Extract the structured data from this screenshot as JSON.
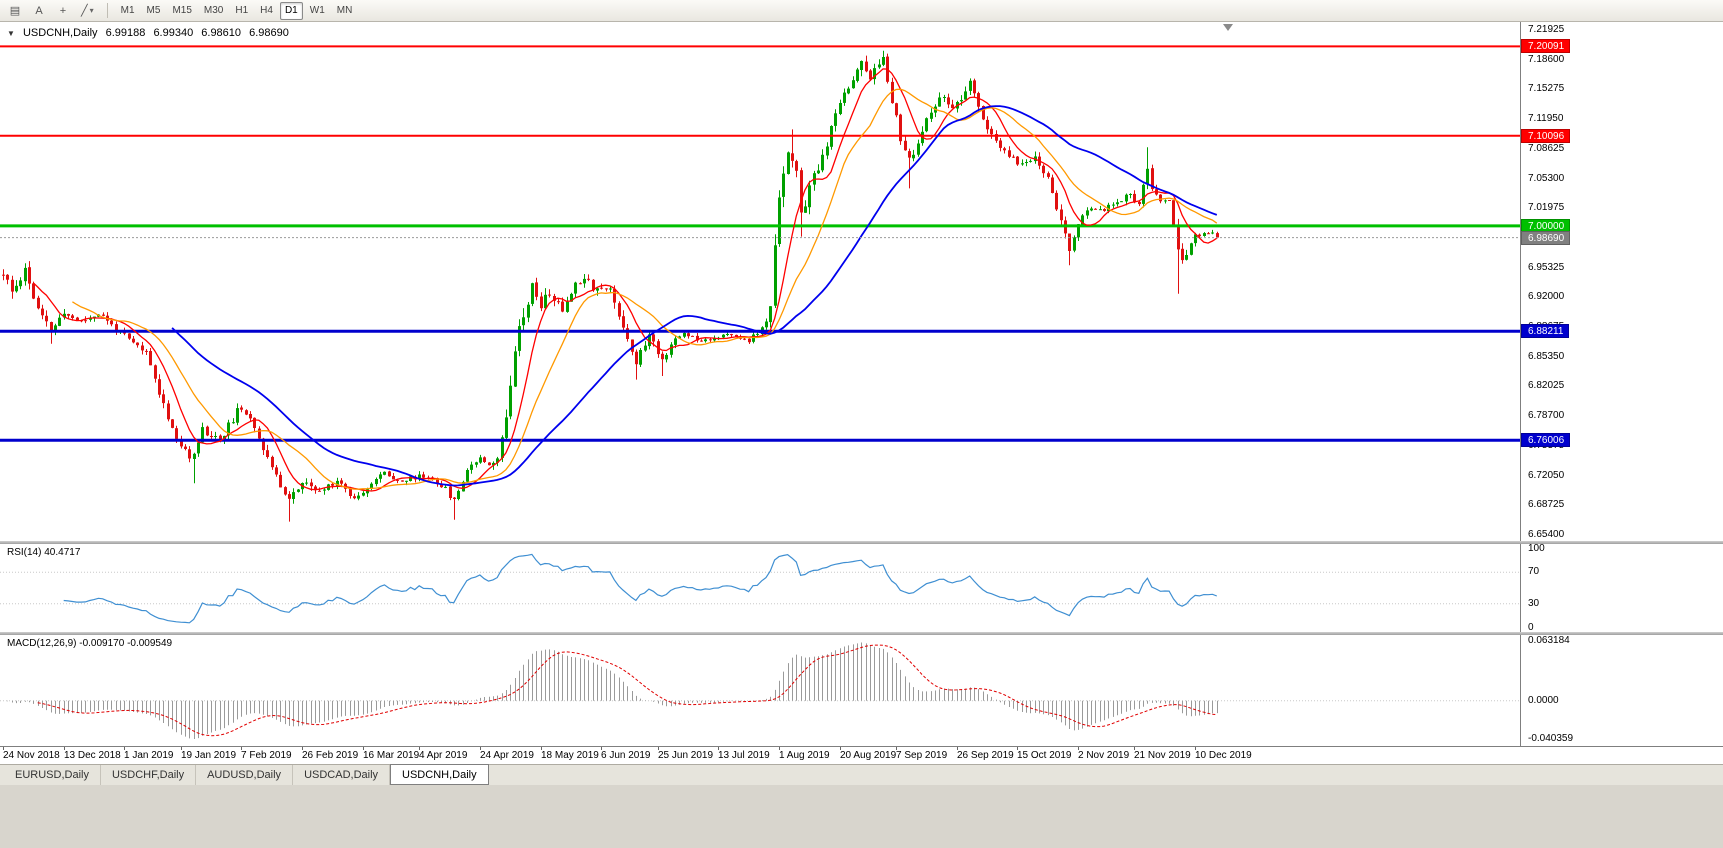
{
  "toolbar": {
    "icons": [
      {
        "name": "charts-window-icon",
        "glyph": "▤"
      },
      {
        "name": "text-annotation-icon",
        "glyph": "A"
      },
      {
        "name": "crosshair-tool-icon",
        "glyph": "+"
      },
      {
        "name": "line-studies-icon",
        "glyph": "╱",
        "caret": "▾"
      }
    ],
    "timeframes": [
      "M1",
      "M5",
      "M15",
      "M30",
      "H1",
      "H4",
      "D1",
      "W1",
      "MN"
    ],
    "active_timeframe": "D1"
  },
  "chart_header": {
    "caret_glyph": "▼",
    "symbol": "USDCNH,Daily",
    "open": "6.99188",
    "high": "6.99340",
    "low": "6.98610",
    "close": "6.98690"
  },
  "price_axis": {
    "ticks": [
      "7.21925",
      "7.18600",
      "7.15275",
      "7.11950",
      "7.08625",
      "7.05300",
      "7.01975",
      "6.98650",
      "6.95325",
      "6.92000",
      "6.88675",
      "6.85350",
      "6.82025",
      "6.78700",
      "6.75375",
      "6.72050",
      "6.68725",
      "6.65400"
    ]
  },
  "levels": [
    {
      "label": "7.20091",
      "price": 7.20091,
      "color": "#ff0000",
      "thickness": 2
    },
    {
      "label": "7.10096",
      "price": 7.10096,
      "color": "#ff0000",
      "thickness": 2
    },
    {
      "label": "7.00000",
      "price": 7.0,
      "color": "#00c000",
      "thickness": 3
    },
    {
      "label": "6.88211",
      "price": 6.88211,
      "color": "#0000cd",
      "thickness": 3
    },
    {
      "label": "6.76006",
      "price": 6.76006,
      "color": "#0000cd",
      "thickness": 3
    }
  ],
  "current_price": {
    "label": "6.98690",
    "value": 6.9869,
    "box_color": "#808080",
    "line_color": "#9a9a9a"
  },
  "moving_averages": [
    {
      "period": 8,
      "color": "#ff0000",
      "width": 1.3
    },
    {
      "period": 17,
      "color": "#ff9900",
      "width": 1.3
    },
    {
      "period": 40,
      "color": "#0000ee",
      "width": 1.8
    }
  ],
  "rsi": {
    "label": "RSI(14) 40.4717",
    "period": 14,
    "value": 40.4717,
    "line_color": "#3f8fd2",
    "guide_levels": [
      70,
      30
    ],
    "axis_labels": [
      {
        "label": "100",
        "value": 100
      },
      {
        "label": "70",
        "value": 70
      },
      {
        "label": "30",
        "value": 30
      },
      {
        "label": "0",
        "value": 0
      }
    ]
  },
  "macd": {
    "label": "MACD(12,26,9) -0.009170 -0.009549",
    "fast": 12,
    "slow": 26,
    "signal_period": 9,
    "main_value": -0.00917,
    "signal_value": -0.009549,
    "max": 0.063184,
    "min": -0.040359,
    "histogram_color": "#9a9a9a",
    "signal_color": "#e00000",
    "axis_labels": [
      {
        "label": "0.063184",
        "value": 0.063184
      },
      {
        "label": "0.0000",
        "value": 0
      },
      {
        "label": "-0.040359",
        "value": -0.040359
      }
    ]
  },
  "tabs": {
    "items": [
      "EURUSD,Daily",
      "USDCHF,Daily",
      "AUDUSD,Daily",
      "USDCAD,Daily",
      "USDCNH,Daily"
    ],
    "active": "USDCNH,Daily"
  },
  "chart_data": {
    "type": "candlestick",
    "symbol": "USDCNH",
    "timeframe": "Daily",
    "bars": 281,
    "seed": 11,
    "y_range": [
      6.6473,
      7.2282
    ],
    "colors": {
      "up": "#00a000",
      "down": "#e01010"
    },
    "close_anchors": [
      [
        0,
        6.945
      ],
      [
        2,
        6.925
      ],
      [
        5,
        6.952
      ],
      [
        8,
        6.905
      ],
      [
        11,
        6.882
      ],
      [
        14,
        6.902
      ],
      [
        18,
        6.893
      ],
      [
        22,
        6.902
      ],
      [
        26,
        6.885
      ],
      [
        29,
        6.872
      ],
      [
        33,
        6.858
      ],
      [
        37,
        6.8
      ],
      [
        40,
        6.762
      ],
      [
        43,
        6.738
      ],
      [
        46,
        6.772
      ],
      [
        50,
        6.76
      ],
      [
        54,
        6.792
      ],
      [
        57,
        6.788
      ],
      [
        60,
        6.752
      ],
      [
        63,
        6.718
      ],
      [
        66,
        6.695
      ],
      [
        69,
        6.712
      ],
      [
        73,
        6.702
      ],
      [
        77,
        6.716
      ],
      [
        81,
        6.695
      ],
      [
        84,
        6.708
      ],
      [
        88,
        6.724
      ],
      [
        92,
        6.714
      ],
      [
        96,
        6.72
      ],
      [
        99,
        6.718
      ],
      [
        102,
        6.705
      ],
      [
        104,
        6.692
      ],
      [
        107,
        6.728
      ],
      [
        110,
        6.742
      ],
      [
        112,
        6.734
      ],
      [
        114,
        6.738
      ],
      [
        116,
        6.79
      ],
      [
        118,
        6.868
      ],
      [
        120,
        6.902
      ],
      [
        122,
        6.932
      ],
      [
        124,
        6.912
      ],
      [
        126,
        6.925
      ],
      [
        129,
        6.905
      ],
      [
        131,
        6.928
      ],
      [
        134,
        6.945
      ],
      [
        136,
        6.932
      ],
      [
        140,
        6.928
      ],
      [
        143,
        6.888
      ],
      [
        146,
        6.848
      ],
      [
        149,
        6.878
      ],
      [
        152,
        6.85
      ],
      [
        154,
        6.868
      ],
      [
        157,
        6.88
      ],
      [
        161,
        6.872
      ],
      [
        167,
        6.878
      ],
      [
        172,
        6.872
      ],
      [
        175,
        6.884
      ],
      [
        177,
        6.905
      ],
      [
        178,
        6.975
      ],
      [
        179,
        7.038
      ],
      [
        180,
        7.062
      ],
      [
        181,
        7.085
      ],
      [
        183,
        7.058
      ],
      [
        184,
        7.008
      ],
      [
        186,
        7.045
      ],
      [
        188,
        7.062
      ],
      [
        190,
        7.092
      ],
      [
        192,
        7.122
      ],
      [
        194,
        7.152
      ],
      [
        196,
        7.162
      ],
      [
        198,
        7.185
      ],
      [
        200,
        7.168
      ],
      [
        202,
        7.178
      ],
      [
        203,
        7.19
      ],
      [
        205,
        7.142
      ],
      [
        207,
        7.098
      ],
      [
        209,
        7.072
      ],
      [
        211,
        7.092
      ],
      [
        213,
        7.118
      ],
      [
        215,
        7.132
      ],
      [
        217,
        7.148
      ],
      [
        219,
        7.128
      ],
      [
        221,
        7.142
      ],
      [
        223,
        7.158
      ],
      [
        225,
        7.135
      ],
      [
        227,
        7.108
      ],
      [
        229,
        7.092
      ],
      [
        232,
        7.078
      ],
      [
        235,
        7.068
      ],
      [
        238,
        7.078
      ],
      [
        241,
        7.052
      ],
      [
        243,
        7.022
      ],
      [
        245,
        6.988
      ],
      [
        246,
        6.972
      ],
      [
        248,
        7.002
      ],
      [
        251,
        7.022
      ],
      [
        254,
        7.018
      ],
      [
        257,
        7.028
      ],
      [
        260,
        7.035
      ],
      [
        262,
        7.022
      ],
      [
        264,
        7.065
      ],
      [
        265,
        7.038
      ],
      [
        267,
        7.028
      ],
      [
        269,
        7.032
      ],
      [
        271,
        6.972
      ],
      [
        272,
        6.962
      ],
      [
        274,
        6.978
      ],
      [
        275,
        6.988
      ],
      [
        277,
        6.992
      ],
      [
        279,
        6.993
      ],
      [
        280,
        6.9869
      ]
    ],
    "vol_anchors": [
      [
        0,
        0.02
      ],
      [
        8,
        0.016
      ],
      [
        14,
        0.011
      ],
      [
        25,
        0.009
      ],
      [
        33,
        0.01
      ],
      [
        40,
        0.013
      ],
      [
        50,
        0.012
      ],
      [
        60,
        0.012
      ],
      [
        70,
        0.011
      ],
      [
        80,
        0.009
      ],
      [
        95,
        0.009
      ],
      [
        110,
        0.009
      ],
      [
        115,
        0.012
      ],
      [
        117,
        0.026
      ],
      [
        122,
        0.018
      ],
      [
        130,
        0.012
      ],
      [
        142,
        0.014
      ],
      [
        150,
        0.012
      ],
      [
        158,
        0.007
      ],
      [
        170,
        0.006
      ],
      [
        176,
        0.01
      ],
      [
        178,
        0.026
      ],
      [
        182,
        0.022
      ],
      [
        190,
        0.014
      ],
      [
        200,
        0.015
      ],
      [
        206,
        0.014
      ],
      [
        214,
        0.012
      ],
      [
        225,
        0.013
      ],
      [
        235,
        0.01
      ],
      [
        244,
        0.013
      ],
      [
        252,
        0.008
      ],
      [
        262,
        0.009
      ],
      [
        264,
        0.014
      ],
      [
        268,
        0.007
      ],
      [
        271,
        0.02
      ],
      [
        274,
        0.008
      ],
      [
        280,
        0.006
      ]
    ],
    "spikes": [
      {
        "bar": 11,
        "low": 6.868
      },
      {
        "bar": 44,
        "low": 6.712
      },
      {
        "bar": 66,
        "low": 6.669
      },
      {
        "bar": 104,
        "low": 6.671
      },
      {
        "bar": 146,
        "low": 6.828
      },
      {
        "bar": 152,
        "low": 6.832
      },
      {
        "bar": 182,
        "high": 7.108
      },
      {
        "bar": 184,
        "low": 6.988
      },
      {
        "bar": 203,
        "high": 7.196
      },
      {
        "bar": 209,
        "low": 7.042
      },
      {
        "bar": 246,
        "low": 6.956
      },
      {
        "bar": 264,
        "high": 7.088
      },
      {
        "bar": 271,
        "low": 6.924
      }
    ],
    "last_bar": {
      "open": 6.99188,
      "high": 6.9934,
      "low": 6.9861,
      "close": 6.9869
    },
    "x_labels": [
      {
        "bar": 0,
        "label": "24 Nov 2018"
      },
      {
        "bar": 14,
        "label": "13 Dec 2018"
      },
      {
        "bar": 28,
        "label": "1 Jan 2019"
      },
      {
        "bar": 41,
        "label": "19 Jan 2019"
      },
      {
        "bar": 55,
        "label": "7 Feb 2019"
      },
      {
        "bar": 69,
        "label": "26 Feb 2019"
      },
      {
        "bar": 83,
        "label": "16 Mar 2019"
      },
      {
        "bar": 96,
        "label": "4 Apr 2019"
      },
      {
        "bar": 110,
        "label": "24 Apr 2019"
      },
      {
        "bar": 124,
        "label": "18 May 2019"
      },
      {
        "bar": 138,
        "label": "6 Jun 2019"
      },
      {
        "bar": 151,
        "label": "25 Jun 2019"
      },
      {
        "bar": 165,
        "label": "13 Jul 2019"
      },
      {
        "bar": 179,
        "label": "1 Aug 2019"
      },
      {
        "bar": 193,
        "label": "20 Aug 2019"
      },
      {
        "bar": 206,
        "label": "7 Sep 2019"
      },
      {
        "bar": 220,
        "label": "26 Sep 2019"
      },
      {
        "bar": 234,
        "label": "15 Oct 2019"
      },
      {
        "bar": 248,
        "label": "2 Nov 2019"
      },
      {
        "bar": 261,
        "label": "21 Nov 2019"
      },
      {
        "bar": 275,
        "label": "10 Dec 2019"
      }
    ]
  }
}
